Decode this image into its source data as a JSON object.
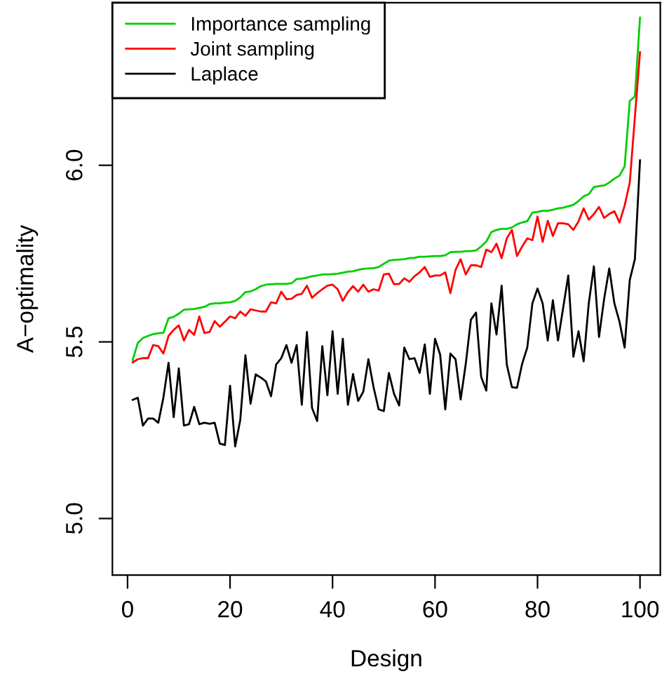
{
  "chart_data": {
    "type": "line",
    "xlabel": "Design",
    "ylabel": "A−optimality",
    "xlim": [
      -2.96,
      103.96
    ],
    "ylim": [
      4.84,
      6.46
    ],
    "xticks": [
      0,
      20,
      40,
      60,
      80,
      100
    ],
    "yticks": [
      {
        "value": 5.0,
        "label": "5.0"
      },
      {
        "value": 5.5,
        "label": "5.5"
      },
      {
        "value": 6.0,
        "label": "6.0"
      }
    ],
    "grid": false,
    "legend": "top left",
    "marker": "none",
    "line_style": "solid",
    "x": [
      1,
      2,
      3,
      4,
      5,
      6,
      7,
      8,
      9,
      10,
      11,
      12,
      13,
      14,
      15,
      16,
      17,
      18,
      19,
      20,
      21,
      22,
      23,
      24,
      25,
      26,
      27,
      28,
      29,
      30,
      31,
      32,
      33,
      34,
      35,
      36,
      37,
      38,
      39,
      40,
      41,
      42,
      43,
      44,
      45,
      46,
      47,
      48,
      49,
      50,
      51,
      52,
      53,
      54,
      55,
      56,
      57,
      58,
      59,
      60,
      61,
      62,
      63,
      64,
      65,
      66,
      67,
      68,
      69,
      70,
      71,
      72,
      73,
      74,
      75,
      76,
      77,
      78,
      79,
      80,
      81,
      82,
      83,
      84,
      85,
      86,
      87,
      88,
      89,
      90,
      91,
      92,
      93,
      94,
      95,
      96,
      97,
      98,
      99,
      100
    ],
    "series": [
      {
        "name": "Importance sampling",
        "color": "#00cd00",
        "values": [
          5.449,
          5.497,
          5.511,
          5.517,
          5.522,
          5.524,
          5.526,
          5.567,
          5.571,
          5.58,
          5.591,
          5.592,
          5.593,
          5.596,
          5.599,
          5.607,
          5.609,
          5.609,
          5.611,
          5.612,
          5.616,
          5.626,
          5.641,
          5.643,
          5.649,
          5.658,
          5.662,
          5.663,
          5.664,
          5.664,
          5.664,
          5.666,
          5.678,
          5.679,
          5.682,
          5.686,
          5.688,
          5.691,
          5.691,
          5.692,
          5.693,
          5.696,
          5.699,
          5.7,
          5.704,
          5.707,
          5.708,
          5.709,
          5.712,
          5.721,
          5.73,
          5.732,
          5.733,
          5.734,
          5.737,
          5.738,
          5.741,
          5.741,
          5.742,
          5.743,
          5.743,
          5.745,
          5.754,
          5.755,
          5.755,
          5.757,
          5.757,
          5.759,
          5.77,
          5.784,
          5.811,
          5.817,
          5.82,
          5.82,
          5.824,
          5.833,
          5.838,
          5.842,
          5.866,
          5.868,
          5.871,
          5.871,
          5.874,
          5.878,
          5.88,
          5.884,
          5.888,
          5.899,
          5.912,
          5.918,
          5.938,
          5.941,
          5.943,
          5.951,
          5.962,
          5.971,
          5.997,
          6.182,
          6.195,
          6.418
        ]
      },
      {
        "name": "Joint sampling",
        "color": "#ff0000",
        "values": [
          5.442,
          5.451,
          5.454,
          5.454,
          5.491,
          5.488,
          5.467,
          5.517,
          5.534,
          5.547,
          5.504,
          5.534,
          5.52,
          5.572,
          5.525,
          5.528,
          5.559,
          5.543,
          5.557,
          5.572,
          5.567,
          5.586,
          5.574,
          5.592,
          5.589,
          5.586,
          5.586,
          5.612,
          5.609,
          5.642,
          5.621,
          5.622,
          5.633,
          5.636,
          5.659,
          5.625,
          5.638,
          5.649,
          5.659,
          5.662,
          5.649,
          5.616,
          5.641,
          5.658,
          5.642,
          5.662,
          5.642,
          5.649,
          5.645,
          5.691,
          5.693,
          5.663,
          5.664,
          5.68,
          5.67,
          5.686,
          5.697,
          5.712,
          5.684,
          5.688,
          5.688,
          5.697,
          5.638,
          5.704,
          5.734,
          5.691,
          5.717,
          5.717,
          5.712,
          5.761,
          5.754,
          5.778,
          5.737,
          5.793,
          5.817,
          5.743,
          5.77,
          5.793,
          5.788,
          5.855,
          5.783,
          5.843,
          5.8,
          5.836,
          5.836,
          5.833,
          5.817,
          5.841,
          5.878,
          5.846,
          5.862,
          5.882,
          5.851,
          5.862,
          5.87,
          5.838,
          5.886,
          5.951,
          6.136,
          6.32
        ]
      },
      {
        "name": "Laplace",
        "color": "#000000",
        "values": [
          5.336,
          5.342,
          5.263,
          5.283,
          5.283,
          5.271,
          5.343,
          5.441,
          5.287,
          5.425,
          5.263,
          5.267,
          5.316,
          5.267,
          5.271,
          5.268,
          5.271,
          5.212,
          5.208,
          5.376,
          5.204,
          5.28,
          5.462,
          5.325,
          5.408,
          5.399,
          5.388,
          5.346,
          5.436,
          5.454,
          5.491,
          5.441,
          5.491,
          5.322,
          5.528,
          5.313,
          5.276,
          5.488,
          5.349,
          5.53,
          5.353,
          5.509,
          5.322,
          5.409,
          5.333,
          5.359,
          5.451,
          5.372,
          5.309,
          5.304,
          5.412,
          5.353,
          5.32,
          5.484,
          5.451,
          5.454,
          5.412,
          5.493,
          5.353,
          5.509,
          5.464,
          5.309,
          5.467,
          5.451,
          5.337,
          5.438,
          5.563,
          5.583,
          5.401,
          5.362,
          5.609,
          5.521,
          5.659,
          5.436,
          5.372,
          5.37,
          5.438,
          5.484,
          5.609,
          5.651,
          5.609,
          5.504,
          5.618,
          5.504,
          5.596,
          5.688,
          5.458,
          5.53,
          5.445,
          5.609,
          5.714,
          5.514,
          5.622,
          5.708,
          5.609,
          5.557,
          5.484,
          5.675,
          5.734,
          6.014
        ]
      }
    ]
  }
}
